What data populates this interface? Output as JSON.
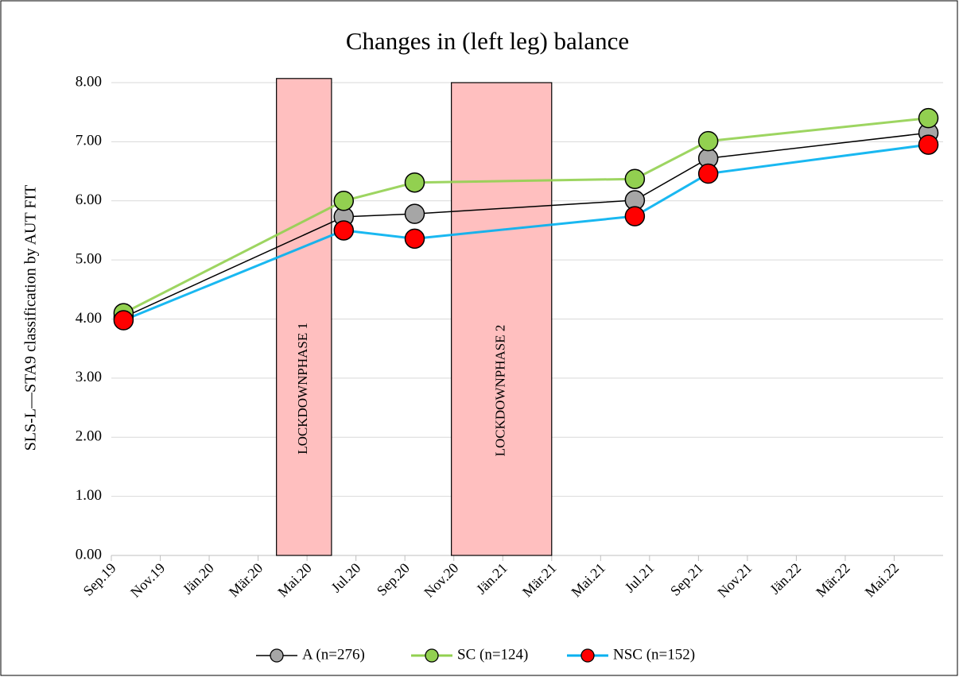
{
  "chart_data": {
    "type": "line",
    "title": "Changes in (left leg) balance",
    "y_label": "SLS-L—STA9 classification by AUT FIT",
    "x": [
      0.5,
      9.5,
      12.4,
      21.4,
      24.4,
      33.4
    ],
    "xlim": [
      0,
      34
    ],
    "xticks": [
      {
        "value": 0,
        "label": "Sep.19"
      },
      {
        "value": 2,
        "label": "Nov.19"
      },
      {
        "value": 4,
        "label": "Jän.20"
      },
      {
        "value": 6,
        "label": "Mär.20"
      },
      {
        "value": 8,
        "label": "Mai.20"
      },
      {
        "value": 10,
        "label": "Jul.20"
      },
      {
        "value": 12,
        "label": "Sep.20"
      },
      {
        "value": 14,
        "label": "Nov.20"
      },
      {
        "value": 16,
        "label": "Jän.21"
      },
      {
        "value": 18,
        "label": "Mär.21"
      },
      {
        "value": 20,
        "label": "Mai.21"
      },
      {
        "value": 22,
        "label": "Jul.21"
      },
      {
        "value": 24,
        "label": "Sep.21"
      },
      {
        "value": 26,
        "label": "Nov.21"
      },
      {
        "value": 28,
        "label": "Jän.22"
      },
      {
        "value": 30,
        "label": "Mär.22"
      },
      {
        "value": 32,
        "label": "Mai.22"
      }
    ],
    "ylim": [
      0,
      8
    ],
    "yticks": [
      {
        "value": 0,
        "label": "0.00"
      },
      {
        "value": 1,
        "label": "1.00"
      },
      {
        "value": 2,
        "label": "2.00"
      },
      {
        "value": 3,
        "label": "3.00"
      },
      {
        "value": 4,
        "label": "4.00"
      },
      {
        "value": 5,
        "label": "5.00"
      },
      {
        "value": 6,
        "label": "6.00"
      },
      {
        "value": 7,
        "label": "7.00"
      },
      {
        "value": 8,
        "label": "8.00"
      }
    ],
    "grid": true,
    "legend": "bottom",
    "series": [
      {
        "name": "A (n=276)",
        "color": "#000000",
        "marker_color": "#a6a6a6",
        "values": [
          4.03,
          5.73,
          5.78,
          6.01,
          6.72,
          7.15
        ]
      },
      {
        "name": "SC (n=124)",
        "color": "#92d050",
        "marker_color": "#92d050",
        "values": [
          4.1,
          6.0,
          6.31,
          6.37,
          7.01,
          7.4
        ]
      },
      {
        "name": "NSC (n=152)",
        "color": "#00b0f0",
        "marker_color": "#ff0000",
        "values": [
          3.98,
          5.5,
          5.36,
          5.74,
          6.46,
          6.95
        ]
      }
    ],
    "shaded_regions": [
      {
        "label": "LOCKDOWNPHASE 1",
        "x": [
          6.75,
          9.0
        ],
        "y": [
          0,
          8.07
        ],
        "color": "#ffbfbf"
      },
      {
        "label": "LOCKDOWNPHASE 2",
        "x": [
          13.9,
          18.0
        ],
        "y": [
          0,
          8.0
        ],
        "color": "#ffbfbf"
      }
    ]
  }
}
